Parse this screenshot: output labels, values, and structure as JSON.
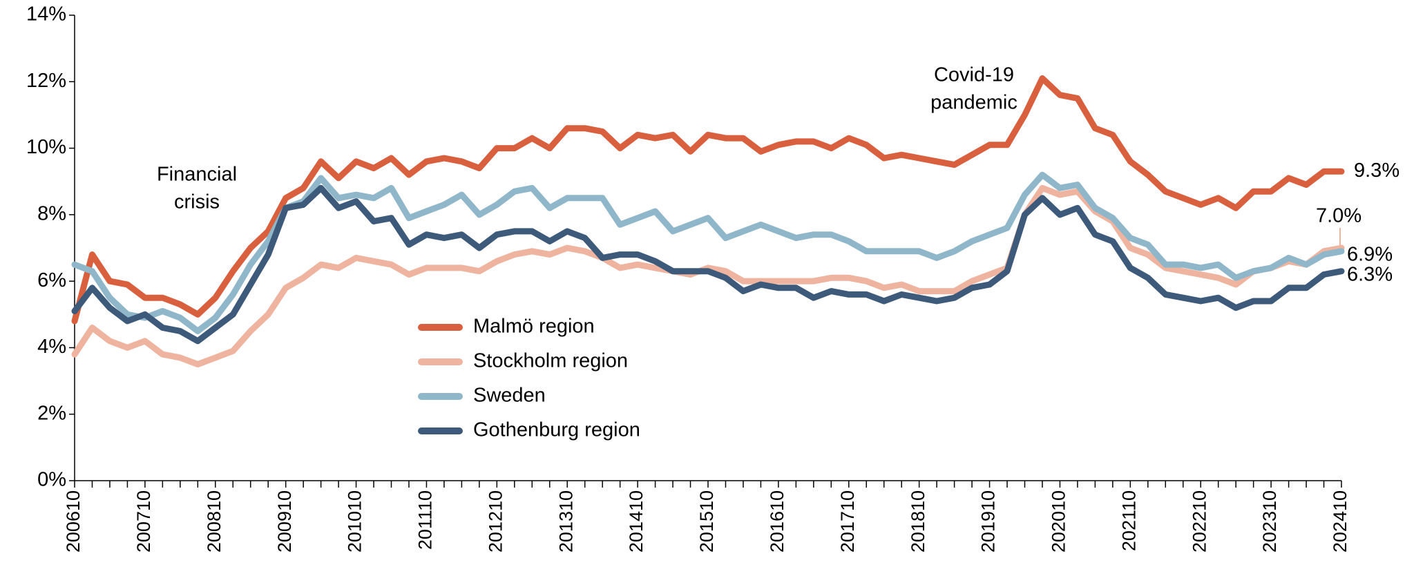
{
  "chart_data": {
    "type": "line",
    "categories": [
      "200610",
      null,
      null,
      null,
      "200710",
      null,
      null,
      null,
      "200810",
      null,
      null,
      null,
      "200910",
      null,
      null,
      null,
      "201010",
      null,
      null,
      null,
      "201110",
      null,
      null,
      null,
      "201210",
      null,
      null,
      null,
      "201310",
      null,
      null,
      null,
      "201410",
      null,
      null,
      null,
      "201510",
      null,
      null,
      null,
      "201610",
      null,
      null,
      null,
      "201710",
      null,
      null,
      null,
      "201810",
      null,
      null,
      null,
      "201910",
      null,
      null,
      null,
      "202010",
      null,
      null,
      null,
      "202110",
      null,
      null,
      null,
      "202210",
      null,
      null,
      null,
      "202310",
      null,
      null,
      null,
      "202410"
    ],
    "series": [
      {
        "name": "Malmö region",
        "color": "#d9603f",
        "end_label": "9.3%",
        "values": [
          4.8,
          6.8,
          6.0,
          5.9,
          5.5,
          5.5,
          5.3,
          5.0,
          5.5,
          6.3,
          7.0,
          7.5,
          8.5,
          8.8,
          9.6,
          9.1,
          9.6,
          9.4,
          9.7,
          9.2,
          9.6,
          9.7,
          9.6,
          9.4,
          10.0,
          10.0,
          10.3,
          10.0,
          10.6,
          10.6,
          10.5,
          10.0,
          10.4,
          10.3,
          10.4,
          9.9,
          10.4,
          10.3,
          10.3,
          9.9,
          10.1,
          10.2,
          10.2,
          10.0,
          10.3,
          10.1,
          9.7,
          9.8,
          9.7,
          9.6,
          9.5,
          9.8,
          10.1,
          10.1,
          11.0,
          12.1,
          11.6,
          11.5,
          10.6,
          10.4,
          9.6,
          9.2,
          8.7,
          8.5,
          8.3,
          8.5,
          8.2,
          8.7,
          8.7,
          9.1,
          8.9,
          9.3,
          9.3
        ]
      },
      {
        "name": "Stockholm region",
        "color": "#efb4a0",
        "end_label": "7.0%",
        "values": [
          3.8,
          4.6,
          4.2,
          4.0,
          4.2,
          3.8,
          3.7,
          3.5,
          3.7,
          3.9,
          4.5,
          5.0,
          5.8,
          6.1,
          6.5,
          6.4,
          6.7,
          6.6,
          6.5,
          6.2,
          6.4,
          6.4,
          6.4,
          6.3,
          6.6,
          6.8,
          6.9,
          6.8,
          7.0,
          6.9,
          6.7,
          6.4,
          6.5,
          6.4,
          6.3,
          6.2,
          6.4,
          6.3,
          6.0,
          6.0,
          6.0,
          6.0,
          6.0,
          6.1,
          6.1,
          6.0,
          5.8,
          5.9,
          5.7,
          5.7,
          5.7,
          6.0,
          6.2,
          6.4,
          8.0,
          8.8,
          8.6,
          8.7,
          8.1,
          7.8,
          7.0,
          6.8,
          6.4,
          6.3,
          6.2,
          6.1,
          5.9,
          6.3,
          6.4,
          6.6,
          6.5,
          6.9,
          7.0
        ]
      },
      {
        "name": "Sweden",
        "color": "#8fb7c9",
        "end_label": "6.9%",
        "values": [
          6.5,
          6.3,
          5.5,
          5.0,
          4.9,
          5.1,
          4.9,
          4.5,
          4.9,
          5.6,
          6.5,
          7.2,
          8.2,
          8.4,
          9.1,
          8.5,
          8.6,
          8.5,
          8.8,
          7.9,
          8.1,
          8.3,
          8.6,
          8.0,
          8.3,
          8.7,
          8.8,
          8.2,
          8.5,
          8.5,
          8.5,
          7.7,
          7.9,
          8.1,
          7.5,
          7.7,
          7.9,
          7.3,
          7.5,
          7.7,
          7.5,
          7.3,
          7.4,
          7.4,
          7.2,
          6.9,
          6.9,
          6.9,
          6.9,
          6.7,
          6.9,
          7.2,
          7.4,
          7.6,
          8.6,
          9.2,
          8.8,
          8.9,
          8.2,
          7.9,
          7.3,
          7.1,
          6.5,
          6.5,
          6.4,
          6.5,
          6.1,
          6.3,
          6.4,
          6.7,
          6.5,
          6.8,
          6.9
        ]
      },
      {
        "name": "Gothenburg region",
        "color": "#3e5a7a",
        "end_label": "6.3%",
        "values": [
          5.1,
          5.8,
          5.2,
          4.8,
          5.0,
          4.6,
          4.5,
          4.2,
          4.6,
          5.0,
          5.9,
          6.8,
          8.2,
          8.3,
          8.8,
          8.2,
          8.4,
          7.8,
          7.9,
          7.1,
          7.4,
          7.3,
          7.4,
          7.0,
          7.4,
          7.5,
          7.5,
          7.2,
          7.5,
          7.3,
          6.7,
          6.8,
          6.8,
          6.6,
          6.3,
          6.3,
          6.3,
          6.1,
          5.7,
          5.9,
          5.8,
          5.8,
          5.5,
          5.7,
          5.6,
          5.6,
          5.4,
          5.6,
          5.5,
          5.4,
          5.5,
          5.8,
          5.9,
          6.3,
          8.0,
          8.5,
          8.0,
          8.2,
          7.4,
          7.2,
          6.4,
          6.1,
          5.6,
          5.5,
          5.4,
          5.5,
          5.2,
          5.4,
          5.4,
          5.8,
          5.8,
          6.2,
          6.3
        ]
      }
    ],
    "ylim": [
      0,
      14
    ],
    "yticks": [
      {
        "value": 0,
        "label": "0%"
      },
      {
        "value": 2,
        "label": "2%"
      },
      {
        "value": 4,
        "label": "4%"
      },
      {
        "value": 6,
        "label": "6%"
      },
      {
        "value": 8,
        "label": "8%"
      },
      {
        "value": 10,
        "label": "10%"
      },
      {
        "value": 12,
        "label": "12%"
      },
      {
        "value": 14,
        "label": "14%"
      }
    ],
    "annotations": [
      {
        "lines": [
          "Financial",
          "crisis"
        ]
      },
      {
        "lines": [
          "Covid-19",
          "pandemic"
        ]
      }
    ],
    "legend": "left"
  }
}
